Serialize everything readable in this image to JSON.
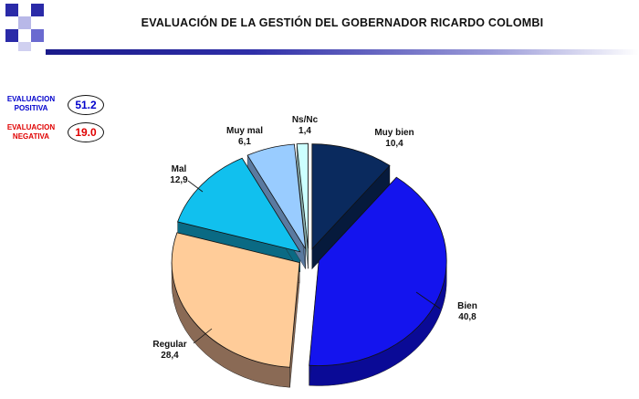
{
  "title": "EVALUACIÓN DE LA GESTIÓN DEL GOBERNADOR RICARDO COLOMBI",
  "summary": {
    "positive": {
      "label_line1": "EVALUACION",
      "label_line2": "POSITIVA",
      "value": "51.2",
      "color": "#0000cc"
    },
    "negative": {
      "label_line1": "EVALUACION",
      "label_line2": "NEGATIVA",
      "value": "19.0",
      "color": "#e00000"
    }
  },
  "chart_data": {
    "type": "pie",
    "title": "",
    "slices": [
      {
        "label": "Muy bien",
        "value": 10.4,
        "display": "10,4",
        "color": "#0a2a5e",
        "side": "#061a3c"
      },
      {
        "label": "Bien",
        "value": 40.8,
        "display": "40,8",
        "color": "#1414ee",
        "side": "#0a0a96"
      },
      {
        "label": "Regular",
        "value": 28.4,
        "display": "28,4",
        "color": "#ffcc99",
        "side": "#8a6a55"
      },
      {
        "label": "Mal",
        "value": 12.9,
        "display": "12,9",
        "color": "#11c0ee",
        "side": "#0a6a84"
      },
      {
        "label": "Muy mal",
        "value": 6.1,
        "display": "6,1",
        "color": "#99ccff",
        "side": "#5a7aa0"
      },
      {
        "label": "Ns/Nc",
        "value": 1.4,
        "display": "1,4",
        "color": "#ccffff",
        "side": "#8ab0b0"
      }
    ],
    "legend": "none"
  }
}
